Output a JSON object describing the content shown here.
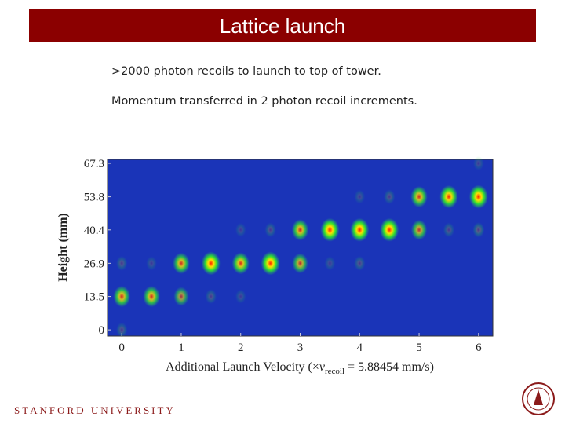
{
  "header": {
    "title": "Lattice launch"
  },
  "body": [
    "&gt;2000 photon  recoils to launch to top of tower.",
    "Momentum transferred in 2 photon recoil increments."
  ],
  "chart_data": {
    "type": "bubble",
    "y_label": "Height  (mm)",
    "x_label": [
      "Additional Launch Velocity (×",
      "v",
      "recoil",
      " = 5.88454 mm/s)"
    ],
    "x": [
      0,
      0,
      0,
      0.5,
      0.5,
      1,
      1,
      1.5,
      1.5,
      2,
      2,
      2,
      2.5,
      2.5,
      3,
      3,
      3.5,
      3.5,
      4,
      4,
      4,
      4.5,
      4.5,
      5,
      5,
      5.5,
      5.5,
      6,
      6,
      6
    ],
    "values": [
      0,
      13.5,
      26.9,
      13.5,
      26.9,
      13.5,
      26.9,
      13.5,
      26.9,
      13.5,
      26.9,
      40.4,
      26.9,
      40.4,
      26.9,
      40.4,
      40.4,
      26.9,
      40.4,
      26.9,
      53.8,
      40.4,
      53.8,
      40.4,
      53.8,
      53.8,
      40.4,
      53.8,
      40.4,
      67.3
    ],
    "intensity": [
      0.2,
      0.8,
      0.2,
      0.8,
      0.15,
      0.6,
      0.8,
      0.2,
      1,
      0.15,
      0.85,
      0.15,
      1,
      0.2,
      0.7,
      0.8,
      1,
      0.15,
      1,
      0.2,
      0.15,
      1,
      0.2,
      0.7,
      0.8,
      0.95,
      0.2,
      1,
      0.25,
      0.15
    ],
    "xlim": [
      -0.24,
      6.24
    ],
    "ylim": [
      -2.5,
      68.9
    ],
    "xticks": [
      0,
      1,
      2,
      3,
      4,
      5,
      6
    ],
    "yticks": [
      0,
      13.5,
      26.9,
      40.4,
      53.8,
      67.3
    ],
    "background": "#1a34b8"
  },
  "footer": {
    "institution": "STANFORD UNIVERSITY"
  }
}
